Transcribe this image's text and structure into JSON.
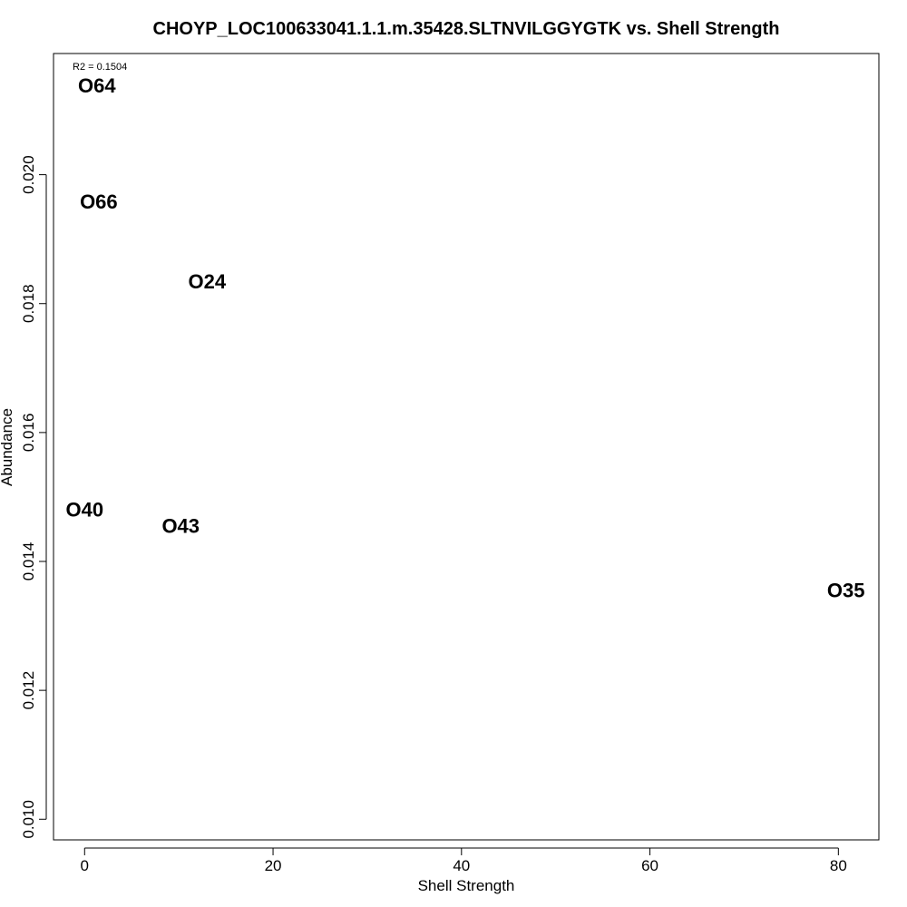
{
  "chart_data": {
    "type": "scatter",
    "title": "CHOYP_LOC100633041.1.1.m.35428.SLTNVILGGYGTK vs. Shell Strength",
    "xlabel": "Shell Strength",
    "ylabel": "Abundance",
    "annotation": "R2 = 0.1504",
    "xlim": [
      -3.3,
      84.3
    ],
    "ylim": [
      0.00968,
      0.02188
    ],
    "xticks": [
      0,
      20,
      40,
      60,
      80
    ],
    "xtick_labels": [
      "0",
      "20",
      "40",
      "60",
      "80"
    ],
    "yticks": [
      0.01,
      0.012,
      0.014,
      0.016,
      0.018,
      0.02
    ],
    "ytick_labels": [
      "0.010",
      "0.012",
      "0.014",
      "0.016",
      "0.018",
      "0.020"
    ],
    "grid": false,
    "marker": "text-label",
    "points": [
      {
        "label": "O64",
        "x": 1.3,
        "y": 0.02138
      },
      {
        "label": "O66",
        "x": 1.5,
        "y": 0.01958
      },
      {
        "label": "O24",
        "x": 13.0,
        "y": 0.01834
      },
      {
        "label": "O40",
        "x": 0.0,
        "y": 0.0148
      },
      {
        "label": "O43",
        "x": 10.2,
        "y": 0.01455
      },
      {
        "label": "O35",
        "x": 80.8,
        "y": 0.01355
      }
    ]
  }
}
